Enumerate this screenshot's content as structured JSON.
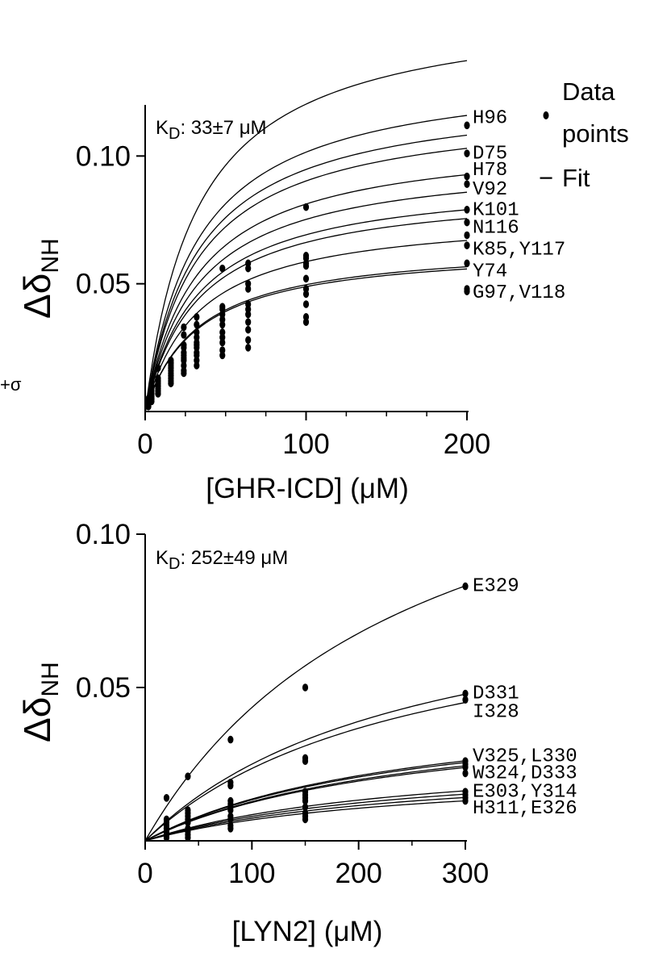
{
  "legend": {
    "points_line1": "Data",
    "points_line2": "points",
    "fit_marker": "−",
    "fit_label": "Fit"
  },
  "stray_text": "+σ",
  "chart_data": [
    {
      "type": "scatter",
      "kd_prefix": "K",
      "kd_sub": "D",
      "kd_value": ": 33±7 μM",
      "kd": 33,
      "xlabel": "[GHR-ICD] (μM)",
      "ylabel_main": "Δδ",
      "ylabel_sub": "NH",
      "xlim": [
        0,
        200
      ],
      "ylim": [
        0,
        0.12
      ],
      "xticks": [
        0,
        100,
        200
      ],
      "xtick_labels": [
        "0",
        "100",
        "200"
      ],
      "minor_xticks": [
        25,
        50,
        75,
        125,
        150,
        175
      ],
      "yticks": [
        0.05,
        0.1
      ],
      "ytick_labels": [
        "0.05",
        "0.10"
      ],
      "x": [
        2,
        4,
        8,
        16,
        24,
        32,
        48,
        64,
        100,
        200
      ],
      "series": [
        {
          "name": "H96",
          "values": [
            0.005,
            0.011,
            0.017,
            0.02,
            0.033,
            0.037,
            0.056,
            0.058,
            0.08,
            0.112
          ]
        },
        {
          "name": "D75",
          "values": [
            0.004,
            0.01,
            0.013,
            0.019,
            0.03,
            0.034,
            0.041,
            0.056,
            0.061,
            0.101
          ]
        },
        {
          "name": "H78",
          "values": [
            0.004,
            0.009,
            0.012,
            0.019,
            0.026,
            0.031,
            0.04,
            0.05,
            0.06,
            0.092
          ]
        },
        {
          "name": "V92",
          "values": [
            0.004,
            0.008,
            0.012,
            0.018,
            0.025,
            0.029,
            0.038,
            0.048,
            0.058,
            0.089
          ]
        },
        {
          "name": "K101",
          "values": [
            0.003,
            0.007,
            0.011,
            0.017,
            0.023,
            0.027,
            0.036,
            0.042,
            0.057,
            0.079
          ]
        },
        {
          "name": "N116",
          "values": [
            0.003,
            0.007,
            0.01,
            0.016,
            0.022,
            0.026,
            0.034,
            0.04,
            0.052,
            0.074
          ]
        },
        {
          "name": "K85",
          "values": [
            0.003,
            0.006,
            0.01,
            0.015,
            0.021,
            0.025,
            0.031,
            0.038,
            0.048,
            0.069
          ]
        },
        {
          "name": "Y117",
          "values": [
            0.003,
            0.006,
            0.009,
            0.014,
            0.02,
            0.023,
            0.029,
            0.035,
            0.046,
            0.065
          ]
        },
        {
          "name": "Y74",
          "values": [
            0.002,
            0.005,
            0.008,
            0.013,
            0.018,
            0.022,
            0.027,
            0.032,
            0.042,
            0.058
          ]
        },
        {
          "name": "G97",
          "values": [
            0.002,
            0.005,
            0.007,
            0.012,
            0.016,
            0.02,
            0.024,
            0.028,
            0.037,
            0.048
          ]
        },
        {
          "name": "V118",
          "values": [
            0.002,
            0.004,
            0.007,
            0.011,
            0.015,
            0.018,
            0.022,
            0.025,
            0.035,
            0.047
          ]
        }
      ],
      "fit_bmax": [
        0.16,
        0.135,
        0.126,
        0.12,
        0.108,
        0.1,
        0.092,
        0.088,
        0.078,
        0.066,
        0.065
      ],
      "residue_labels": [
        {
          "text": "H96",
          "y": 0.1155
        },
        {
          "text": "D75",
          "y": 0.1015
        },
        {
          "text": "H78",
          "y": 0.095
        },
        {
          "text": "V92",
          "y": 0.0875
        },
        {
          "text": "K101",
          "y": 0.0795
        },
        {
          "text": "N116",
          "y": 0.0725
        },
        {
          "text": "K85,Y117",
          "y": 0.064
        },
        {
          "text": "Y74",
          "y": 0.0555
        },
        {
          "text": "G97,V118",
          "y": 0.047
        }
      ]
    },
    {
      "type": "scatter",
      "kd_prefix": "K",
      "kd_sub": "D",
      "kd_value": ": 252±49 μM",
      "kd": 252,
      "xlabel": "[LYN2] (μM)",
      "ylabel_main": "Δδ",
      "ylabel_sub": "NH",
      "xlim": [
        0,
        300
      ],
      "ylim": [
        0,
        0.1
      ],
      "xticks": [
        0,
        100,
        200,
        300
      ],
      "xtick_labels": [
        "0",
        "100",
        "200",
        "300"
      ],
      "minor_xticks": [
        50,
        150,
        250
      ],
      "yticks": [
        0.05,
        0.1
      ],
      "ytick_labels": [
        "0.05",
        "0.10"
      ],
      "x": [
        20,
        40,
        80,
        150,
        300
      ],
      "series": [
        {
          "name": "E329",
          "values": [
            0.014,
            0.021,
            0.033,
            0.05,
            0.083
          ]
        },
        {
          "name": "D331",
          "values": [
            0.007,
            0.01,
            0.019,
            0.027,
            0.048
          ]
        },
        {
          "name": "I328",
          "values": [
            0.006,
            0.009,
            0.018,
            0.026,
            0.046
          ]
        },
        {
          "name": "V325",
          "values": [
            0.005,
            0.008,
            0.013,
            0.016,
            0.026
          ]
        },
        {
          "name": "L330",
          "values": [
            0.005,
            0.007,
            0.012,
            0.015,
            0.025
          ]
        },
        {
          "name": "W324",
          "values": [
            0.004,
            0.006,
            0.011,
            0.014,
            0.024
          ]
        },
        {
          "name": "D333",
          "values": [
            0.004,
            0.006,
            0.01,
            0.013,
            0.022
          ]
        },
        {
          "name": "E303",
          "values": [
            0.003,
            0.004,
            0.008,
            0.011,
            0.016
          ]
        },
        {
          "name": "Y314",
          "values": [
            0.002,
            0.003,
            0.007,
            0.009,
            0.015
          ]
        },
        {
          "name": "H311",
          "values": [
            0.002,
            0.002,
            0.005,
            0.008,
            0.014
          ]
        },
        {
          "name": "E326",
          "values": [
            0.001,
            0.001,
            0.004,
            0.007,
            0.013
          ]
        }
      ],
      "fit_bmax": [
        0.153,
        0.088,
        0.083,
        0.048,
        0.047,
        0.045,
        0.044,
        0.03,
        0.028,
        0.026,
        0.024
      ],
      "residue_labels": [
        {
          "text": "E329",
          "y": 0.0835
        },
        {
          "text": "D331",
          "y": 0.0485
        },
        {
          "text": "I328",
          "y": 0.0425
        },
        {
          "text": "V325,L330",
          "y": 0.028
        },
        {
          "text": "W324,D333",
          "y": 0.0225
        },
        {
          "text": "E303,Y314",
          "y": 0.0165
        },
        {
          "text": "H311,E326",
          "y": 0.011
        }
      ]
    }
  ]
}
